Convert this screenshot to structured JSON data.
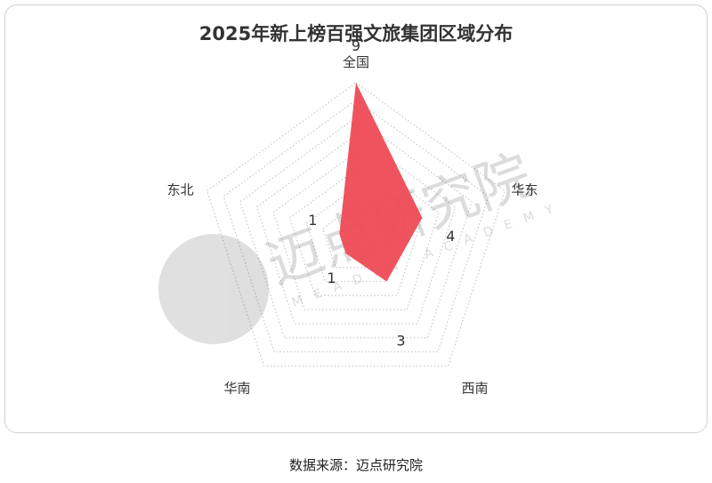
{
  "chart_data": {
    "type": "radar",
    "title": "2025年新上榜百强文旅集团区域分布",
    "categories": [
      "全国",
      "华东",
      "西南",
      "华南",
      "东北"
    ],
    "values": [
      9,
      4,
      3,
      1,
      1
    ],
    "rmax": 9,
    "grid": true,
    "series_color": "#ee4a55"
  },
  "watermark": {
    "text": "迈点研究院",
    "subtext": "MEADIN ACADEMY"
  },
  "footer": {
    "source": "数据来源：迈点研究院"
  }
}
